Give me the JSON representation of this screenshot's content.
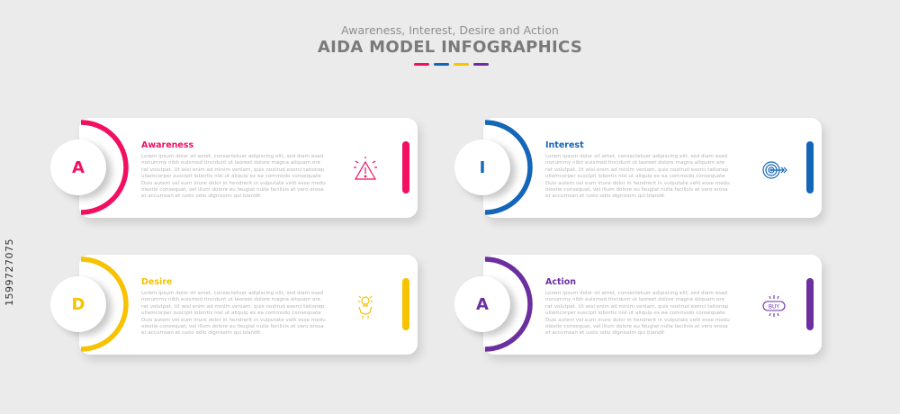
{
  "header": {
    "subtitle": "Awareness, Interest, Desire and Action",
    "title": "AIDA MODEL INFOGRAPHICS"
  },
  "colors": {
    "awareness": "#f20f62",
    "interest": "#1466b8",
    "desire": "#f7c200",
    "action": "#6b2fa0",
    "title": "#7a7a7a",
    "body": "#b5b5b5",
    "background": "#ebebeb"
  },
  "steps": [
    {
      "letter": "A",
      "title": "Awareness",
      "icon": "warning-triangle-icon",
      "color": "#f20f62",
      "body": "Lorem ipsum dolor sit amet, consectetuer adipiscing elit, sed diam esad\nnonummy nibh euismod tincidunt ut laoreet dolore magna aliquam ere\nrat volutpat. Ut wisi enim ad minim veniam, quis nostrud exerci tationep\nullamcorper suscipit lobortis nisl ut aliquip ex ea commodo consequate\nDuis autem vel eum iriure dolor in hendrerit in vulputate velit esse medu\nolestie consequat, vel illum dolore eu feugiat nulla facilisis at vero erosa\net accumsan et iusto odio dignissim qui blandit"
    },
    {
      "letter": "I",
      "title": "Interest",
      "icon": "target-icon",
      "color": "#1466b8",
      "body": "Lorem ipsum dolor sit amet, consectetuer adipiscing elit, sed diam esad\nnonummy nibh euismod tincidunt ut laoreet dolore magna aliquam ere\nrat volutpat. Ut wisi enim ad minim veniam, quis nostrud exerci tationep\nullamcorper suscipit lobortis nisl ut aliquip ex ea commodo consequate\nDuis autem vel eum iriure dolor in hendrerit in vulputate velit esse medu\nolestie consequat, vel illum dolore eu feugiat nulla facilisis at vero erosa\net accumsan et iusto odio dignissim qui blandit"
    },
    {
      "letter": "D",
      "title": "Desire",
      "icon": "hand-lightbulb-icon",
      "color": "#f7c200",
      "body": "Lorem ipsum dolor sit amet, consectetuer adipiscing elit, sed diam esad\nnonummy nibh euismod tincidunt ut laoreet dolore magna aliquam ere\nrat volutpat. Ut wisi enim ad minim veniam, quis nostrud exerci tationep\nullamcorper suscipit lobortis nisl ut aliquip ex ea commodo consequate\nDuis autem vel eum iriure dolor in hendrerit in vulputate velit esse medu\nolestie consequat, vel illum dolore eu feugiat nulla facilisis at vero erosa\net accumsan et iusto odio dignissim qui blandit"
    },
    {
      "letter": "A",
      "title": "Action",
      "icon": "buy-badge-icon",
      "icon_text": "BUY",
      "color": "#6b2fa0",
      "body": "Lorem ipsum dolor sit amet, consectetuer adipiscing elit, sed diam esad\nnonummy nibh euismod tincidunt ut laoreet dolore magna aliquam ere\nrat volutpat. Ut wisi enim ad minim veniam, quis nostrud exerci tationep\nullamcorper suscipit lobortis nisl ut aliquip ex ea commodo consequate\nDuis autem vel eum iriure dolor in hendrerit in vulputate velit esse medu\nolestie consequat, vel illum dolore eu feugiat nulla facilisis at vero erosa\net accumsan et iusto odio dignissim qui blandit"
    }
  ],
  "watermark": {
    "id": "1599727075"
  }
}
